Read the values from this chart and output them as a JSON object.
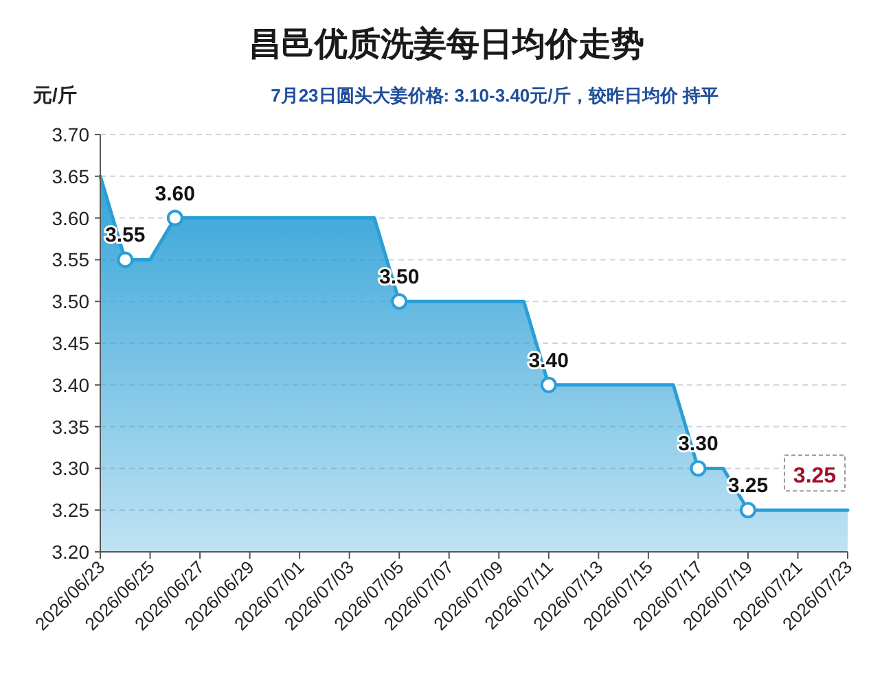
{
  "chart_data": {
    "type": "area",
    "title": "昌邑优质洗姜每日均价走势",
    "subtitle": "7月23日圆头大姜价格: 3.10-3.40元/斤，较昨日均价 持平",
    "ylabel": "元/斤",
    "x": [
      "2026-06-23",
      "2026-06-24",
      "2026-06-25",
      "2026-06-26",
      "2026-06-27",
      "2026-06-28",
      "2026-06-29",
      "2026-06-30",
      "2026-07-01",
      "2026-07-02",
      "2026-07-03",
      "2026-07-04",
      "2026-07-05",
      "2026-07-06",
      "2026-07-07",
      "2026-07-08",
      "2026-07-09",
      "2026-07-10",
      "2026-07-11",
      "2026-07-12",
      "2026-07-13",
      "2026-07-14",
      "2026-07-15",
      "2026-07-16",
      "2026-07-17",
      "2026-07-18",
      "2026-07-19",
      "2026-07-20",
      "2026-07-21",
      "2026-07-22",
      "2026-07-23"
    ],
    "series": [
      {
        "color": "#2a9fd6",
        "values": [
          3.65,
          3.55,
          3.55,
          3.6,
          3.6,
          3.6,
          3.6,
          3.6,
          3.6,
          3.6,
          3.6,
          3.6,
          3.5,
          3.5,
          3.5,
          3.5,
          3.5,
          3.5,
          3.4,
          3.4,
          3.4,
          3.4,
          3.4,
          3.4,
          3.3,
          3.3,
          3.25,
          3.25,
          3.25,
          3.25,
          3.25
        ],
        "value_labels": [
          null,
          "3.55",
          null,
          "3.60",
          null,
          null,
          null,
          null,
          null,
          null,
          null,
          null,
          "3.50",
          null,
          null,
          null,
          null,
          null,
          "3.40",
          null,
          null,
          null,
          null,
          null,
          "3.30",
          null,
          "3.25",
          null,
          null,
          null,
          "3.25"
        ]
      }
    ],
    "xlim": [
      "2026-06-23",
      "2026-07-23"
    ],
    "xticks": [
      {
        "value": "2026-06-23",
        "label": "2026/06/23"
      },
      {
        "value": "2026-06-25",
        "label": "2026/06/25"
      },
      {
        "value": "2026-06-27",
        "label": "2026/06/27"
      },
      {
        "value": "2026-06-29",
        "label": "2026/06/29"
      },
      {
        "value": "2026-07-01",
        "label": "2026/07/01"
      },
      {
        "value": "2026-07-03",
        "label": "2026/07/03"
      },
      {
        "value": "2026-07-05",
        "label": "2026/07/05"
      },
      {
        "value": "2026-07-07",
        "label": "2026/07/07"
      },
      {
        "value": "2026-07-09",
        "label": "2026/07/09"
      },
      {
        "value": "2026-07-11",
        "label": "2026/07/11"
      },
      {
        "value": "2026-07-13",
        "label": "2026/07/13"
      },
      {
        "value": "2026-07-15",
        "label": "2026/07/15"
      },
      {
        "value": "2026-07-17",
        "label": "2026/07/17"
      },
      {
        "value": "2026-07-19",
        "label": "2026/07/19"
      },
      {
        "value": "2026-07-21",
        "label": "2026/07/21"
      },
      {
        "value": "2026-07-23",
        "label": "2026/07/23"
      }
    ],
    "ylim": [
      3.2,
      3.7
    ],
    "yticks": [
      "3.20",
      "3.25",
      "3.30",
      "3.35",
      "3.40",
      "3.45",
      "3.50",
      "3.55",
      "3.60",
      "3.65",
      "3.70"
    ],
    "grid": "y"
  }
}
